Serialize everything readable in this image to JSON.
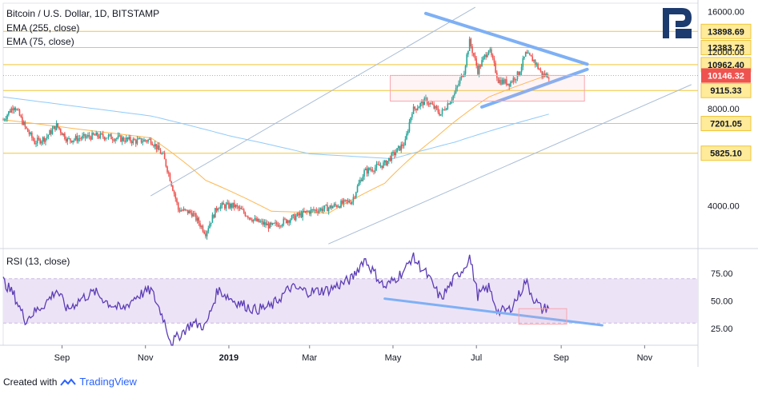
{
  "header": {
    "title": "Bitcoin / U.S. Dollar, 1D, BITSTAMP",
    "indicators": [
      "EMA (255, close)",
      "EMA (75, close)"
    ]
  },
  "rsi_label": "RSI (13, close)",
  "footer": {
    "created_with": "Created with",
    "brand": "TradingView"
  },
  "colors": {
    "up": "#26a69a",
    "down": "#ef5350",
    "ema255": "#90caf9",
    "ema75": "#ffb74d",
    "level": "#f0c53a",
    "trendline": "#7eb0f5",
    "rsi": "#5b3db4",
    "rsi_band": "#ede3f7",
    "price_tag": "#ef5350",
    "box": "#f7a6b0"
  },
  "chart_data": [
    {
      "type": "candlestick",
      "title": "Bitcoin / U.S. Dollar, 1D, BITSTAMP",
      "y_scale": "log",
      "ylim": [
        3000,
        17000
      ],
      "y_ticks": [
        16000,
        12000,
        8000,
        4000
      ],
      "y_tick_labels": [
        "16000.00",
        "12000.00",
        "8000.00",
        "4000.00"
      ],
      "x_tick_labels": [
        "Sep",
        "Nov",
        "2019",
        "Mar",
        "May",
        "Jul",
        "Sep",
        "Nov"
      ],
      "levels": [
        13898.69,
        12383.73,
        10962.4,
        9115.33,
        7201.05,
        5825.1
      ],
      "level_labels": [
        "13898.69",
        "12383.73",
        "10962.40",
        "9115.33",
        "7201.05",
        "5825.10"
      ],
      "current_price": 10146.32,
      "current_price_label": "10146.32",
      "close_series": [
        {
          "x": "2018-07-20",
          "y": 7400
        },
        {
          "x": "2018-07-28",
          "y": 8200
        },
        {
          "x": "2018-08-05",
          "y": 7000
        },
        {
          "x": "2018-08-12",
          "y": 6300
        },
        {
          "x": "2018-08-20",
          "y": 6500
        },
        {
          "x": "2018-08-28",
          "y": 7100
        },
        {
          "x": "2018-09-05",
          "y": 6400
        },
        {
          "x": "2018-09-15",
          "y": 6500
        },
        {
          "x": "2018-09-25",
          "y": 6600
        },
        {
          "x": "2018-10-05",
          "y": 6550
        },
        {
          "x": "2018-10-15",
          "y": 6450
        },
        {
          "x": "2018-10-25",
          "y": 6350
        },
        {
          "x": "2018-11-05",
          "y": 6400
        },
        {
          "x": "2018-11-14",
          "y": 5700
        },
        {
          "x": "2018-11-20",
          "y": 4700
        },
        {
          "x": "2018-11-25",
          "y": 3900
        },
        {
          "x": "2018-12-05",
          "y": 3800
        },
        {
          "x": "2018-12-15",
          "y": 3300
        },
        {
          "x": "2018-12-24",
          "y": 4000
        },
        {
          "x": "2019-01-05",
          "y": 4000
        },
        {
          "x": "2019-01-20",
          "y": 3600
        },
        {
          "x": "2019-02-01",
          "y": 3450
        },
        {
          "x": "2019-02-15",
          "y": 3650
        },
        {
          "x": "2019-03-01",
          "y": 3850
        },
        {
          "x": "2019-03-15",
          "y": 3950
        },
        {
          "x": "2019-04-01",
          "y": 4150
        },
        {
          "x": "2019-04-10",
          "y": 5100
        },
        {
          "x": "2019-04-25",
          "y": 5400
        },
        {
          "x": "2019-05-10",
          "y": 6300
        },
        {
          "x": "2019-05-15",
          "y": 7900
        },
        {
          "x": "2019-05-25",
          "y": 8500
        },
        {
          "x": "2019-06-05",
          "y": 7700
        },
        {
          "x": "2019-06-15",
          "y": 8900
        },
        {
          "x": "2019-06-22",
          "y": 10500
        },
        {
          "x": "2019-06-26",
          "y": 12900
        },
        {
          "x": "2019-07-02",
          "y": 10500
        },
        {
          "x": "2019-07-10",
          "y": 12300
        },
        {
          "x": "2019-07-17",
          "y": 9800
        },
        {
          "x": "2019-07-25",
          "y": 9600
        },
        {
          "x": "2019-08-01",
          "y": 10300
        },
        {
          "x": "2019-08-06",
          "y": 11800
        },
        {
          "x": "2019-08-12",
          "y": 11300
        },
        {
          "x": "2019-08-18",
          "y": 10200
        },
        {
          "x": "2019-08-23",
          "y": 10146.32
        }
      ],
      "ema255": [
        {
          "x": "2018-07-20",
          "y": 8700
        },
        {
          "x": "2018-09-15",
          "y": 8100
        },
        {
          "x": "2018-11-05",
          "y": 7600
        },
        {
          "x": "2019-01-01",
          "y": 6600
        },
        {
          "x": "2019-03-01",
          "y": 5800
        },
        {
          "x": "2019-05-01",
          "y": 5600
        },
        {
          "x": "2019-06-15",
          "y": 6300
        },
        {
          "x": "2019-08-23",
          "y": 7700
        }
      ],
      "ema75": [
        {
          "x": "2018-07-20",
          "y": 7400
        },
        {
          "x": "2018-09-15",
          "y": 6900
        },
        {
          "x": "2018-11-05",
          "y": 6500
        },
        {
          "x": "2018-12-15",
          "y": 4800
        },
        {
          "x": "2019-02-01",
          "y": 3850
        },
        {
          "x": "2019-03-15",
          "y": 3800
        },
        {
          "x": "2019-04-25",
          "y": 4700
        },
        {
          "x": "2019-06-01",
          "y": 6500
        },
        {
          "x": "2019-07-10",
          "y": 8700
        },
        {
          "x": "2019-08-23",
          "y": 10200
        }
      ]
    },
    {
      "type": "line",
      "title": "RSI (13, close)",
      "ylim": [
        10,
        95
      ],
      "y_ticks": [
        75,
        50,
        25
      ],
      "y_tick_labels": [
        "75.00",
        "50.00",
        "25.00"
      ],
      "band": [
        30,
        70
      ],
      "series": [
        {
          "values": [
            {
              "x": "2018-07-20",
              "y": 68
            },
            {
              "x": "2018-07-28",
              "y": 55
            },
            {
              "x": "2018-08-05",
              "y": 33
            },
            {
              "x": "2018-08-12",
              "y": 40
            },
            {
              "x": "2018-08-20",
              "y": 48
            },
            {
              "x": "2018-08-28",
              "y": 60
            },
            {
              "x": "2018-09-05",
              "y": 42
            },
            {
              "x": "2018-09-15",
              "y": 52
            },
            {
              "x": "2018-09-25",
              "y": 58
            },
            {
              "x": "2018-10-05",
              "y": 48
            },
            {
              "x": "2018-10-15",
              "y": 42
            },
            {
              "x": "2018-10-25",
              "y": 54
            },
            {
              "x": "2018-11-05",
              "y": 60
            },
            {
              "x": "2018-11-14",
              "y": 35
            },
            {
              "x": "2018-11-20",
              "y": 12
            },
            {
              "x": "2018-11-25",
              "y": 18
            },
            {
              "x": "2018-12-05",
              "y": 30
            },
            {
              "x": "2018-12-15",
              "y": 27
            },
            {
              "x": "2018-12-24",
              "y": 60
            },
            {
              "x": "2019-01-05",
              "y": 50
            },
            {
              "x": "2019-01-20",
              "y": 42
            },
            {
              "x": "2019-02-01",
              "y": 45
            },
            {
              "x": "2019-02-15",
              "y": 62
            },
            {
              "x": "2019-03-01",
              "y": 58
            },
            {
              "x": "2019-03-15",
              "y": 60
            },
            {
              "x": "2019-04-01",
              "y": 70
            },
            {
              "x": "2019-04-10",
              "y": 88
            },
            {
              "x": "2019-04-25",
              "y": 62
            },
            {
              "x": "2019-05-10",
              "y": 78
            },
            {
              "x": "2019-05-15",
              "y": 90
            },
            {
              "x": "2019-05-25",
              "y": 75
            },
            {
              "x": "2019-06-05",
              "y": 52
            },
            {
              "x": "2019-06-15",
              "y": 70
            },
            {
              "x": "2019-06-22",
              "y": 80
            },
            {
              "x": "2019-06-26",
              "y": 90
            },
            {
              "x": "2019-07-02",
              "y": 55
            },
            {
              "x": "2019-07-10",
              "y": 62
            },
            {
              "x": "2019-07-17",
              "y": 40
            },
            {
              "x": "2019-07-25",
              "y": 42
            },
            {
              "x": "2019-08-01",
              "y": 55
            },
            {
              "x": "2019-08-06",
              "y": 68
            },
            {
              "x": "2019-08-12",
              "y": 52
            },
            {
              "x": "2019-08-18",
              "y": 42
            },
            {
              "x": "2019-08-23",
              "y": 45
            }
          ]
        }
      ]
    }
  ]
}
